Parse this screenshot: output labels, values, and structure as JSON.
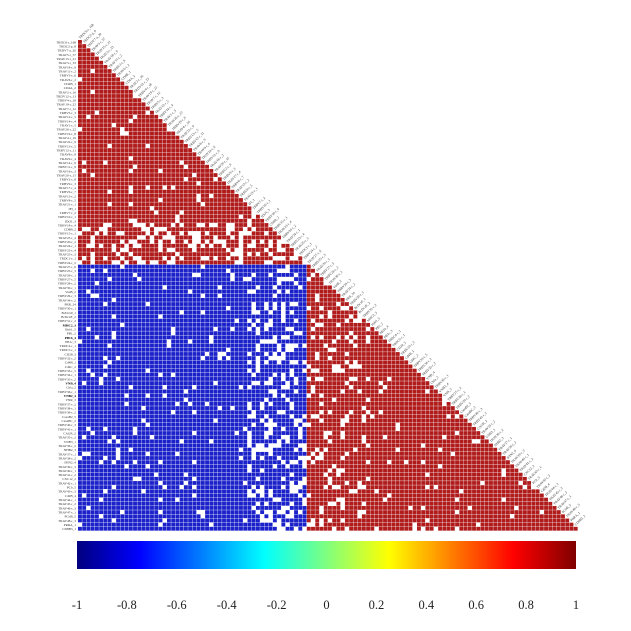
{
  "chart_data": {
    "type": "heatmap",
    "subtype": "lower-triangular correlation matrix",
    "n_variables": 118,
    "labels": [
      "TRDC6-r_168",
      "TRDC2-p_8",
      "TRDV7-a_20",
      "TRAV5-r_57",
      "TRAV15-r_21",
      "TRAV3-r_33",
      "TRAV18-r_9",
      "TRAV11-r_2",
      "TRBV3-r_6",
      "TRAV6-r_2",
      "CD4B_1",
      "CD4A_2",
      "TRAV2-r_16",
      "TRDV12-r_13",
      "TRBV4-r_18",
      "TRAV19-r_22",
      "TRAV7-r_12",
      "TRBV5-r_3",
      "TRAV12-r_5",
      "TRBV14-r_4",
      "TRAV1-r_5",
      "TRAV26-r_22",
      "TRBV19-r_8",
      "TRAV4-r_16",
      "TRAV22-r_9",
      "TRBV13-r_5",
      "TRBV12-r_11",
      "TRAV8-r_9",
      "TRAV9-r_4",
      "TRAV14-r_6",
      "TRBV11-r_9",
      "TRAV16-r_3",
      "TRAV20-r_15",
      "TRBV2-r_8",
      "TRBV9-r_3",
      "TRAV17-r_4",
      "TRBV6-r_7",
      "TRAV13-r_2",
      "TRBV8-r_5",
      "TRAV21-r_1",
      "IFI_1",
      "TRBV7-r_2",
      "TRBV10-r_1",
      "IDO1_3",
      "TRBV18-r_4",
      "CD8B_2",
      "TRBV15-r_1",
      "TRAV23-r_4",
      "TRBV20-r_2",
      "TRAV24-r_1",
      "TRBV23-r_4",
      "TRAV25-r_3",
      "TRDC1-r_1",
      "TRBV24-r_2",
      "TRAV27-r_6",
      "TRBV25-r_3",
      "TRAV29-r_1",
      "TRBV27-r_5",
      "TRBV28-r_2",
      "TRAV30-r_1",
      "VaaB_2",
      "TRBV29-r_3",
      "TRAV34-r_2",
      "PRR_24",
      "TRBV30-r_1",
      "BcDcx0_1",
      "BcDcxE_2",
      "TRBV31-r_2",
      "MHC2_3",
      "Ifnb1_5",
      "PB1_2",
      "PB1b_4",
      "PB1c_3",
      "TRDC4-r_1",
      "TRDC5-r_1",
      "CD28_3",
      "TRBV32-r_2",
      "Cd4B_1",
      "Cd4C_2",
      "TRBV33-r_5",
      "TRBV34-r_1",
      "TRBV35-r_2",
      "VNB_4",
      "Chla_2",
      "TRBV36-r_1",
      "VNB2_4",
      "VNR_3",
      "TRBV37-r_2",
      "TRBV38-r_1",
      "TRBV39-r_2",
      "CasaB2_5",
      "CasaBC_2",
      "TRBV40-r_3",
      "TRBV41-r_1",
      "CAGR_2",
      "TRAV35-r_2",
      "VNB3_1",
      "TRAV36-r_2",
      "NHB2_3",
      "TRAV37-r_1",
      "TRAV38-r_2",
      "IFIN2_4",
      "TRAV39-r_3",
      "TRAV40-r_1",
      "TRAV41-r_2",
      "CXC12_2",
      "TRAV42-r_1",
      "PCb_5",
      "TRAV43-r_3",
      "Cd2B_4",
      "TRAV44-r_1",
      "TRAV45-r_2",
      "TRAV46-r_3",
      "TRAV47-r_1",
      "PCbB_5",
      "TRAV48-r_3",
      "PRRA_1",
      "CD8B3_1"
    ],
    "bold_labels": [
      "DPF2B_1",
      "PB1b_4",
      "MHC2_3",
      "VNB_4",
      "VNB2_4"
    ],
    "sign_blocks": [
      {
        "vars": [
          1,
          44
        ],
        "vs": [
          1,
          44
        ],
        "sign": "positive"
      },
      {
        "vars": [
          45,
          54
        ],
        "vs": [
          1,
          54
        ],
        "sign": "positive, partially non-significant"
      },
      {
        "vars": [
          55,
          118
        ],
        "vs": [
          1,
          54
        ],
        "sign": "negative"
      },
      {
        "vars": [
          55,
          118
        ],
        "vs": [
          55,
          118
        ],
        "sign": "positive"
      }
    ],
    "cell_colors": {
      "positive": "#b01c1c",
      "negative": "#1c22c9",
      "not_significant": "#ffffff"
    },
    "colorbar": {
      "min": -1,
      "max": 1,
      "ticks": [
        "-1",
        "-0.8",
        "-0.6",
        "-0.4",
        "-0.2",
        "0",
        "0.2",
        "0.4",
        "0.6",
        "0.8",
        "1"
      ],
      "stops": [
        "#00007f",
        "#0000ff",
        "#007fff",
        "#00ffff",
        "#7fff7f",
        "#ffff00",
        "#ff7f00",
        "#ff0000",
        "#7f0000"
      ]
    }
  }
}
